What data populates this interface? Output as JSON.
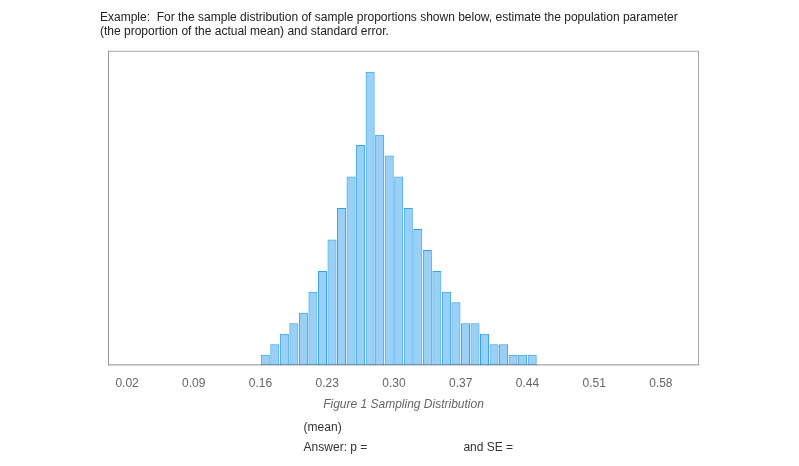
{
  "chart_data": {
    "type": "bar",
    "title": "Example:  For the sample distribution of sample proportions shown below, estimate the population parameter\n(the proportion of the actual mean) and standard error.",
    "xlabel": "Figure 1 Sampling Distribution",
    "annotations": [
      "(mean)",
      "Answer: p =",
      "and SE ="
    ],
    "x": [
      0.165,
      0.175,
      0.185,
      0.195,
      0.205,
      0.215,
      0.225,
      0.235,
      0.245,
      0.255,
      0.265,
      0.275,
      0.285,
      0.295,
      0.305,
      0.315,
      0.325,
      0.335,
      0.345,
      0.355,
      0.365,
      0.375,
      0.385,
      0.395,
      0.405,
      0.415,
      0.425,
      0.435,
      0.445
    ],
    "values": [
      1,
      2,
      3,
      4,
      5,
      7,
      9,
      12,
      15,
      18,
      21,
      28,
      22,
      20,
      18,
      15,
      13,
      11,
      9,
      7,
      6,
      4,
      4,
      3,
      2,
      2,
      1,
      1,
      1
    ],
    "xlim": [
      0.0,
      0.62
    ],
    "xticks": [
      0.02,
      0.09,
      0.16,
      0.23,
      {
        "value": 0.3,
        "label": "0.30"
      },
      0.37,
      0.44,
      0.51,
      0.58
    ],
    "ylim": [
      0,
      30
    ],
    "tick_labels": "x",
    "grid": false
  }
}
